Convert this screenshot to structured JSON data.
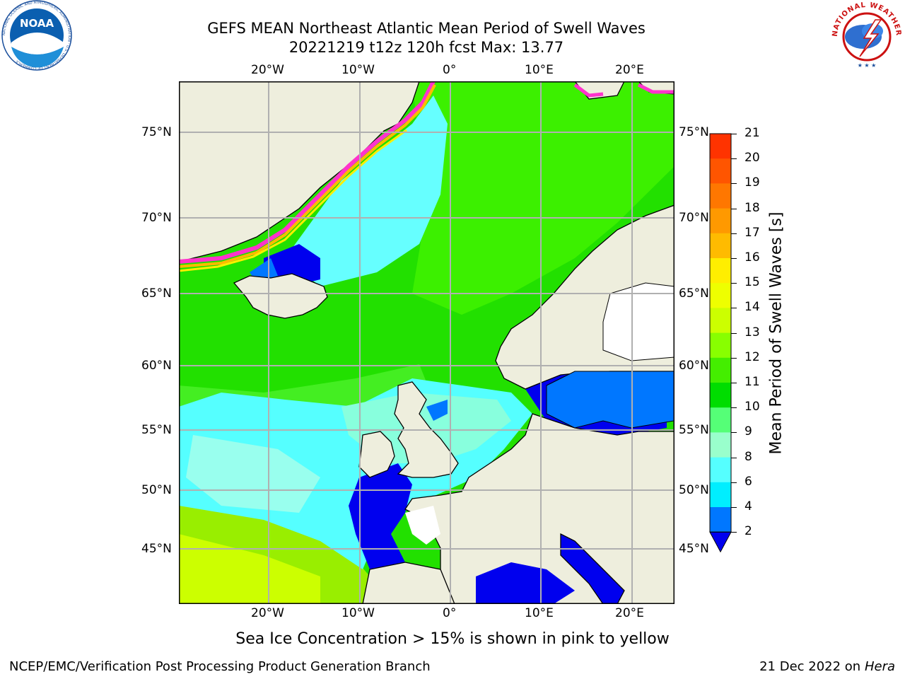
{
  "header": {
    "title_line1": "GEFS MEAN Northeast Atlantic Mean Period of Swell Waves",
    "title_line2": "20221219 t12z 120h fcst   Max: 13.77"
  },
  "logos": {
    "left_name": "NOAA",
    "left_ring_text": "NATIONAL OCEANIC AND ATMOSPHERIC ADMINISTRATION · U.S. DEPARTMENT OF COMMERCE",
    "right_ring_text": "NATIONAL WEATHER SERVICE"
  },
  "map": {
    "lon_labels": [
      "20°W",
      "10°W",
      "0°",
      "10°E",
      "20°E"
    ],
    "lat_labels": [
      "75°N",
      "70°N",
      "65°N",
      "60°N",
      "55°N",
      "50°N",
      "45°N"
    ],
    "note": "Sea Ice Concentration > 15% is shown in pink to yellow"
  },
  "colorbar": {
    "label": "Mean Period of Swell Waves [s]",
    "ticks": [
      "21",
      "20",
      "19",
      "18",
      "17",
      "16",
      "15",
      "14",
      "13",
      "12",
      "11",
      "10",
      "9",
      "8",
      "6",
      "4",
      "2"
    ],
    "colors": [
      "#ff0000",
      "#ff3300",
      "#ff5500",
      "#ff7700",
      "#ff9900",
      "#ffbb00",
      "#ffee00",
      "#eeff00",
      "#ccff00",
      "#88ff00",
      "#44ee00",
      "#00dd00",
      "#55ff77",
      "#99ffcc",
      "#55ffff",
      "#00eeff",
      "#0077ff",
      "#0000ee"
    ],
    "land_color": "#eeeedd"
  },
  "footer": {
    "left": "NCEP/EMC/Verification Post Processing Product Generation Branch",
    "right_date": "21 Dec 2022 on",
    "right_host": "Hera"
  }
}
